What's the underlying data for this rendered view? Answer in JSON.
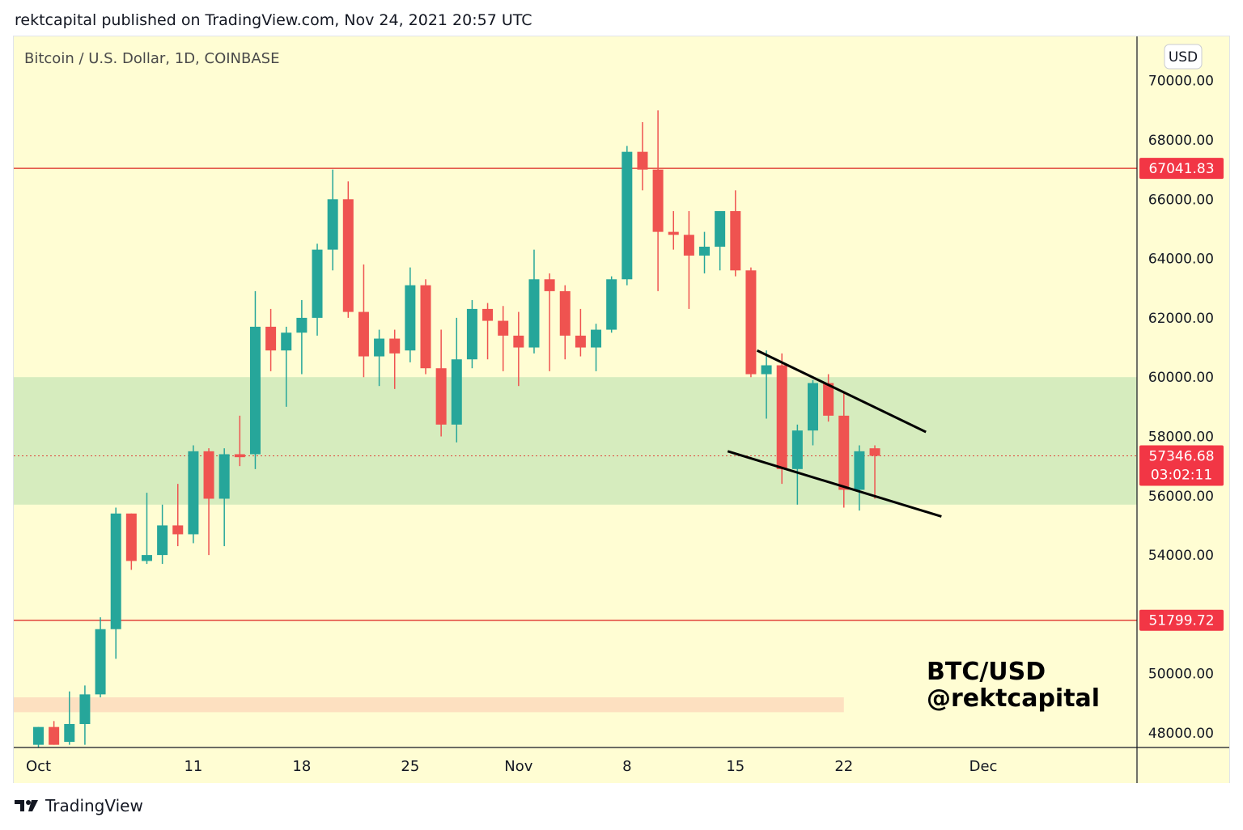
{
  "header": {
    "published": "rektcapital published on TradingView.com, Nov 24, 2021 20:57 UTC"
  },
  "footer": {
    "brand": "TradingView"
  },
  "chart_data": {
    "type": "candlestick",
    "title": "Bitcoin / U.S. Dollar, 1D, COINBASE",
    "currency": "USD",
    "ylim": [
      47600,
      71800
    ],
    "y_ticks": [
      "48000.00",
      "50000.00",
      "54000.00",
      "56000.00",
      "58000.00",
      "60000.00",
      "62000.00",
      "64000.00",
      "66000.00",
      "68000.00",
      "70000.00"
    ],
    "x_ticks": [
      {
        "label": "Oct",
        "day": 0
      },
      {
        "label": "11",
        "day": 10
      },
      {
        "label": "18",
        "day": 17
      },
      {
        "label": "25",
        "day": 24
      },
      {
        "label": "Nov",
        "day": 31
      },
      {
        "label": "8",
        "day": 38
      },
      {
        "label": "15",
        "day": 45
      },
      {
        "label": "22",
        "day": 52
      },
      {
        "label": "Dec",
        "day": 61
      }
    ],
    "start_date": "2021-10-01",
    "candles": [
      {
        "o": 47600,
        "h": 48200,
        "l": 47500,
        "c": 48200
      },
      {
        "o": 48200,
        "h": 48400,
        "l": 47600,
        "c": 47600
      },
      {
        "o": 47700,
        "h": 49400,
        "l": 47600,
        "c": 48300
      },
      {
        "o": 48300,
        "h": 49600,
        "l": 47600,
        "c": 49300
      },
      {
        "o": 49300,
        "h": 51900,
        "l": 49200,
        "c": 51500
      },
      {
        "o": 51500,
        "h": 55600,
        "l": 50500,
        "c": 55400
      },
      {
        "o": 55400,
        "h": 55400,
        "l": 53500,
        "c": 53800
      },
      {
        "o": 53800,
        "h": 56100,
        "l": 53700,
        "c": 54000
      },
      {
        "o": 54000,
        "h": 55700,
        "l": 53700,
        "c": 55000
      },
      {
        "o": 55000,
        "h": 56400,
        "l": 54300,
        "c": 54700
      },
      {
        "o": 54700,
        "h": 57700,
        "l": 54400,
        "c": 57500
      },
      {
        "o": 57500,
        "h": 57600,
        "l": 54000,
        "c": 55900
      },
      {
        "o": 55900,
        "h": 57600,
        "l": 54300,
        "c": 57400
      },
      {
        "o": 57400,
        "h": 58700,
        "l": 57000,
        "c": 57300
      },
      {
        "o": 57400,
        "h": 62900,
        "l": 56900,
        "c": 61700
      },
      {
        "o": 61700,
        "h": 62300,
        "l": 60200,
        "c": 60900
      },
      {
        "o": 60900,
        "h": 61700,
        "l": 59000,
        "c": 61500
      },
      {
        "o": 61500,
        "h": 62600,
        "l": 60100,
        "c": 62000
      },
      {
        "o": 62000,
        "h": 64500,
        "l": 61400,
        "c": 64300
      },
      {
        "o": 64300,
        "h": 67000,
        "l": 63600,
        "c": 66000
      },
      {
        "o": 66000,
        "h": 66600,
        "l": 62000,
        "c": 62200
      },
      {
        "o": 62200,
        "h": 63800,
        "l": 60000,
        "c": 60700
      },
      {
        "o": 60700,
        "h": 61600,
        "l": 59700,
        "c": 61300
      },
      {
        "o": 61300,
        "h": 61600,
        "l": 59600,
        "c": 60800
      },
      {
        "o": 60900,
        "h": 63700,
        "l": 60500,
        "c": 63100
      },
      {
        "o": 63100,
        "h": 63300,
        "l": 60100,
        "c": 60300
      },
      {
        "o": 60300,
        "h": 61600,
        "l": 58000,
        "c": 58400
      },
      {
        "o": 58400,
        "h": 62000,
        "l": 57800,
        "c": 60600
      },
      {
        "o": 60600,
        "h": 62600,
        "l": 60300,
        "c": 62300
      },
      {
        "o": 62300,
        "h": 62500,
        "l": 60600,
        "c": 61900
      },
      {
        "o": 61900,
        "h": 62400,
        "l": 60200,
        "c": 61400
      },
      {
        "o": 61400,
        "h": 62200,
        "l": 59700,
        "c": 61000
      },
      {
        "o": 61000,
        "h": 64300,
        "l": 60800,
        "c": 63300
      },
      {
        "o": 63300,
        "h": 63500,
        "l": 60200,
        "c": 62900
      },
      {
        "o": 62900,
        "h": 63100,
        "l": 60600,
        "c": 61400
      },
      {
        "o": 61400,
        "h": 62300,
        "l": 60700,
        "c": 61000
      },
      {
        "o": 61000,
        "h": 61800,
        "l": 60200,
        "c": 61600
      },
      {
        "o": 61600,
        "h": 63400,
        "l": 61500,
        "c": 63300
      },
      {
        "o": 63300,
        "h": 67800,
        "l": 63100,
        "c": 67600
      },
      {
        "o": 67600,
        "h": 68600,
        "l": 66300,
        "c": 67000
      },
      {
        "o": 67000,
        "h": 69000,
        "l": 62900,
        "c": 64900
      },
      {
        "o": 64900,
        "h": 65600,
        "l": 64300,
        "c": 64800
      },
      {
        "o": 64800,
        "h": 65600,
        "l": 62300,
        "c": 64100
      },
      {
        "o": 64100,
        "h": 64900,
        "l": 63500,
        "c": 64400
      },
      {
        "o": 64400,
        "h": 65600,
        "l": 63600,
        "c": 65600
      },
      {
        "o": 65600,
        "h": 66300,
        "l": 63400,
        "c": 63600
      },
      {
        "o": 63600,
        "h": 63700,
        "l": 60000,
        "c": 60100
      },
      {
        "o": 60100,
        "h": 60900,
        "l": 58600,
        "c": 60400
      },
      {
        "o": 60400,
        "h": 60800,
        "l": 56400,
        "c": 56900
      },
      {
        "o": 56900,
        "h": 58400,
        "l": 55700,
        "c": 58200
      },
      {
        "o": 58200,
        "h": 59900,
        "l": 57700,
        "c": 59800
      },
      {
        "o": 59800,
        "h": 60100,
        "l": 58500,
        "c": 58700
      },
      {
        "o": 58700,
        "h": 59500,
        "l": 55600,
        "c": 56200
      },
      {
        "o": 56200,
        "h": 57700,
        "l": 55500,
        "c": 57500
      },
      {
        "o": 57600,
        "h": 57700,
        "l": 55900,
        "c": 57346.68
      }
    ],
    "horizontal_levels": [
      {
        "value": 67041.83,
        "label": "67041.83"
      },
      {
        "value": 51799.72,
        "label": "51799.72"
      }
    ],
    "current_price": {
      "value": 57346.68,
      "label": "57346.68",
      "countdown": "03:02:11"
    },
    "zones": [
      {
        "from": 55700,
        "to": 60000,
        "color": "#d6ecbe"
      },
      {
        "from": 48700,
        "to": 49200,
        "color": "#fde0c0",
        "end_day": 52
      }
    ],
    "trendlines": [
      {
        "start": {
          "day": 46.4,
          "price": 60900
        },
        "end": {
          "day": 57.3,
          "price": 58150
        }
      },
      {
        "start": {
          "day": 44.5,
          "price": 57500
        },
        "end": {
          "day": 58.3,
          "price": 55300
        }
      }
    ],
    "watermark": [
      "BTC/USD",
      "@rektcapital"
    ],
    "colors": {
      "background": "#fffdd3",
      "up": "#26a69a",
      "down": "#ef5350",
      "level_line": "#e0443a",
      "label_bg": "#f23645",
      "trendline": "#000000",
      "axis_text": "#131722"
    }
  }
}
